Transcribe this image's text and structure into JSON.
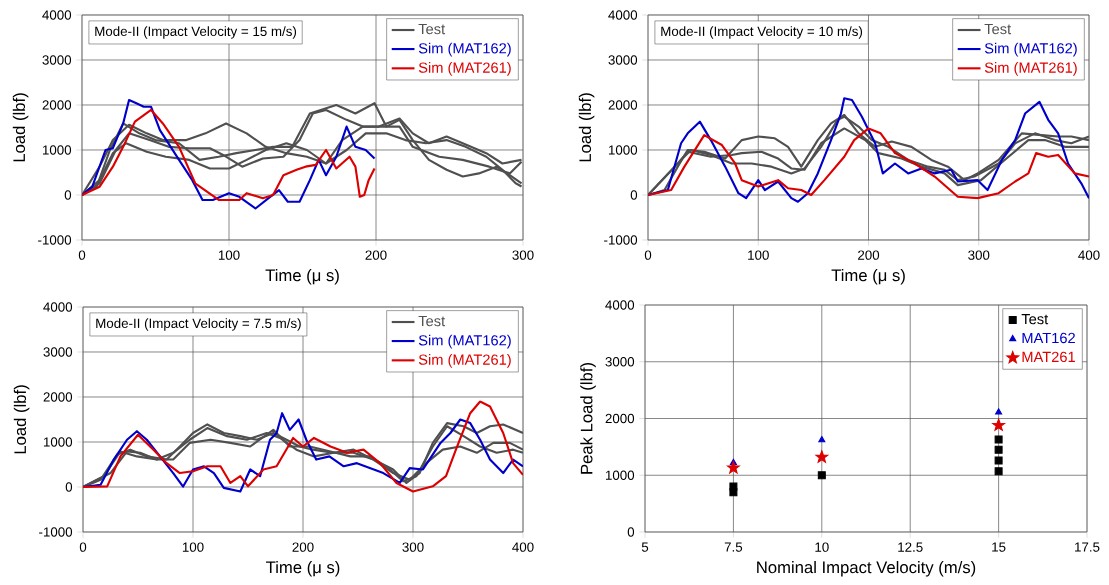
{
  "chart_data": [
    {
      "type": "line",
      "xlabel": "Time (μ s)",
      "ylabel": "Load (lbf)",
      "annotations": [
        "Mode-II (Impact Velocity = 15 m/s)"
      ],
      "xlim": [
        0,
        300
      ],
      "xticks": [
        0,
        100,
        200,
        300
      ],
      "ylim": [
        -1000,
        4000
      ],
      "yticks": [
        -1000,
        0,
        1000,
        2000,
        3000,
        4000
      ],
      "grid": true,
      "legend": "top right",
      "series": [
        {
          "name": "Test",
          "color": "#505050",
          "x": [
            0,
            10,
            19,
            28,
            39,
            50,
            66,
            80,
            93,
            105,
            118,
            130,
            143,
            155,
            173,
            186,
            199,
            207,
            216,
            225,
            236,
            248,
            259,
            270,
            282,
            291,
            299
          ],
          "values": [
            0,
            185,
            1000,
            1590,
            1370,
            1220,
            1150,
            780,
            850,
            930,
            1000,
            1070,
            1070,
            1810,
            2000,
            1810,
            2040,
            1520,
            1670,
            1220,
            780,
            560,
            410,
            480,
            630,
            440,
            260
          ]
        },
        {
          "color": "#505050",
          "x": [
            0,
            12,
            21,
            32,
            44,
            55,
            71,
            84,
            98,
            112,
            125,
            139,
            153,
            166,
            177,
            191,
            202,
            216,
            225,
            236,
            248,
            259,
            275,
            286,
            299
          ],
          "values": [
            0,
            630,
            1220,
            1560,
            1370,
            1220,
            1220,
            1370,
            1590,
            1370,
            1070,
            930,
            850,
            700,
            1220,
            1520,
            1520,
            1700,
            1370,
            1150,
            1300,
            1150,
            930,
            700,
            780
          ]
        },
        {
          "color": "#505050",
          "x": [
            0,
            12,
            21,
            30,
            44,
            57,
            73,
            87,
            100,
            112,
            125,
            139,
            153,
            166,
            180,
            193,
            207,
            220,
            234,
            248,
            261,
            275,
            286,
            295,
            299
          ],
          "values": [
            0,
            330,
            930,
            1150,
            960,
            850,
            780,
            590,
            590,
            780,
            1000,
            1150,
            1000,
            700,
            1000,
            1370,
            1370,
            1220,
            1150,
            1220,
            1070,
            850,
            560,
            260,
            190
          ]
        },
        {
          "color": "#505050",
          "x": [
            0,
            12,
            23,
            32,
            46,
            59,
            73,
            87,
            96,
            109,
            123,
            137,
            148,
            157,
            166,
            180,
            191,
            202,
            216,
            225,
            243,
            259,
            277,
            291,
            299
          ],
          "values": [
            0,
            260,
            1000,
            1370,
            1220,
            1070,
            1040,
            1040,
            890,
            630,
            810,
            850,
            1220,
            1810,
            1890,
            1670,
            1520,
            1520,
            1520,
            1070,
            850,
            780,
            630,
            480,
            740
          ]
        },
        {
          "name": "Sim (MAT162)",
          "color": "#0000cc",
          "x": [
            0,
            7,
            16,
            21,
            28,
            32,
            37,
            42,
            47,
            53,
            66,
            75,
            82,
            89,
            100,
            107,
            118,
            128,
            134,
            140,
            148,
            155,
            161,
            166,
            173,
            180,
            186,
            193,
            199
          ],
          "values": [
            0,
            185,
            1000,
            1040,
            1590,
            2110,
            2040,
            1960,
            1960,
            1440,
            780,
            330,
            -110,
            -110,
            40,
            -40,
            -300,
            -40,
            110,
            -150,
            -150,
            330,
            780,
            440,
            850,
            1520,
            1070,
            1000,
            810
          ]
        },
        {
          "name": "Sim (MAT261)",
          "color": "#dd0000",
          "x": [
            0,
            12,
            21,
            28,
            36,
            47,
            55,
            66,
            77,
            93,
            107,
            112,
            123,
            130,
            137,
            146,
            152,
            159,
            166,
            173,
            182,
            186,
            189,
            192,
            195,
            199
          ],
          "values": [
            0,
            185,
            630,
            1070,
            1630,
            1890,
            1590,
            1070,
            260,
            -110,
            -110,
            40,
            -70,
            0,
            440,
            560,
            630,
            670,
            1000,
            590,
            850,
            630,
            -40,
            0,
            330,
            590
          ]
        }
      ]
    },
    {
      "type": "line",
      "xlabel": "Time (μ s)",
      "ylabel": "Load (lbf)",
      "annotations": [
        "Mode-II (Impact Velocity = 10 m/s)"
      ],
      "xlim": [
        0,
        400
      ],
      "xticks": [
        0,
        100,
        200,
        300,
        400
      ],
      "ylim": [
        -1000,
        4000
      ],
      "yticks": [
        -1000,
        0,
        1000,
        2000,
        3000,
        4000
      ],
      "grid": true,
      "legend": "top right",
      "series": [
        {
          "name": "Test",
          "color": "#505050",
          "x": [
            0,
            15,
            27,
            36,
            51,
            70,
            85,
            100,
            115,
            127,
            139,
            154,
            166,
            178,
            191,
            206,
            221,
            239,
            257,
            272,
            287,
            299,
            318,
            339,
            357,
            372,
            384,
            400
          ],
          "values": [
            0,
            110,
            630,
            1000,
            960,
            810,
            1220,
            1300,
            1260,
            1070,
            630,
            1220,
            1590,
            1780,
            1370,
            1070,
            1190,
            1070,
            780,
            630,
            330,
            480,
            780,
            1370,
            1330,
            1300,
            1300,
            1220
          ]
        },
        {
          "color": "#505050",
          "x": [
            0,
            27,
            36,
            57,
            76,
            85,
            103,
            118,
            130,
            142,
            157,
            178,
            197,
            209,
            230,
            248,
            269,
            281,
            302,
            327,
            345,
            360,
            378,
            400
          ],
          "values": [
            0,
            700,
            960,
            850,
            890,
            930,
            960,
            810,
            590,
            560,
            1150,
            1480,
            1220,
            930,
            810,
            630,
            480,
            220,
            330,
            850,
            1220,
            1220,
            1070,
            1070
          ]
        },
        {
          "color": "#505050",
          "x": [
            0,
            30,
            39,
            57,
            76,
            94,
            112,
            130,
            142,
            157,
            172,
            178,
            191,
            203,
            218,
            236,
            254,
            269,
            281,
            296,
            318,
            333,
            351,
            369,
            384,
            400
          ],
          "values": [
            0,
            780,
            1000,
            890,
            700,
            700,
            630,
            480,
            590,
            1070,
            1670,
            1740,
            1520,
            1220,
            1070,
            780,
            630,
            560,
            330,
            410,
            700,
            1150,
            1370,
            1220,
            1150,
            1300
          ]
        },
        {
          "name": "Sim (MAT162)",
          "color": "#0000cc",
          "x": [
            0,
            18,
            30,
            36,
            47,
            57,
            70,
            82,
            89,
            100,
            106,
            118,
            130,
            136,
            145,
            154,
            166,
            175,
            178,
            185,
            194,
            206,
            213,
            224,
            236,
            248,
            260,
            275,
            281,
            299,
            308,
            321,
            333,
            342,
            355,
            363,
            372,
            381,
            393,
            400
          ],
          "values": [
            0,
            110,
            1150,
            1370,
            1630,
            1220,
            630,
            40,
            -70,
            330,
            110,
            300,
            -70,
            -150,
            40,
            480,
            1220,
            1810,
            2150,
            2110,
            1740,
            1150,
            480,
            700,
            480,
            590,
            480,
            560,
            300,
            330,
            110,
            780,
            1220,
            1810,
            2070,
            1670,
            1370,
            700,
            260,
            -70
          ]
        },
        {
          "name": "Sim (MAT261)",
          "color": "#dd0000",
          "x": [
            0,
            21,
            33,
            51,
            67,
            79,
            85,
            100,
            118,
            127,
            139,
            148,
            160,
            178,
            187,
            200,
            211,
            224,
            242,
            260,
            281,
            299,
            318,
            333,
            345,
            352,
            363,
            372,
            387,
            400
          ],
          "values": [
            0,
            110,
            630,
            1330,
            1110,
            700,
            330,
            190,
            330,
            150,
            110,
            0,
            330,
            850,
            1220,
            1480,
            1370,
            930,
            700,
            410,
            -40,
            -70,
            40,
            300,
            480,
            930,
            850,
            890,
            480,
            410
          ]
        }
      ]
    },
    {
      "type": "line",
      "xlabel": "Time (μ s)",
      "ylabel": "Load (lbf)",
      "annotations": [
        "Mode-II (Impact Velocity = 7.5 m/s)"
      ],
      "xlim": [
        0,
        400
      ],
      "xticks": [
        0,
        100,
        200,
        300,
        400
      ],
      "ylim": [
        -1000,
        4000
      ],
      "yticks": [
        -1000,
        0,
        1000,
        2000,
        3000,
        4000
      ],
      "grid": true,
      "legend": "top right",
      "series": [
        {
          "name": "Test",
          "color": "#505050",
          "x": [
            0,
            16,
            31,
            43,
            58,
            76,
            88,
            100,
            113,
            128,
            143,
            158,
            173,
            185,
            197,
            209,
            227,
            246,
            264,
            282,
            294,
            306,
            318,
            331,
            346,
            358,
            370,
            382,
            400
          ],
          "values": [
            0,
            160,
            720,
            830,
            680,
            610,
            900,
            1200,
            1390,
            1200,
            1130,
            1050,
            1200,
            1050,
            900,
            830,
            760,
            760,
            610,
            390,
            90,
            310,
            980,
            1420,
            1350,
            1200,
            1350,
            1390,
            1200
          ]
        },
        {
          "color": "#505050",
          "x": [
            0,
            19,
            34,
            49,
            67,
            82,
            97,
            113,
            131,
            149,
            167,
            179,
            194,
            210,
            228,
            246,
            264,
            282,
            297,
            312,
            327,
            343,
            358,
            373,
            388,
            400
          ],
          "values": [
            0,
            240,
            790,
            680,
            610,
            760,
            1050,
            1310,
            1130,
            1050,
            1200,
            1090,
            830,
            680,
            760,
            830,
            610,
            310,
            160,
            530,
            830,
            900,
            760,
            980,
            980,
            830
          ]
        },
        {
          "color": "#505050",
          "x": [
            0,
            25,
            40,
            52,
            67,
            82,
            97,
            116,
            134,
            152,
            173,
            188,
            206,
            225,
            243,
            261,
            279,
            291,
            303,
            318,
            331,
            346,
            361,
            376,
            391,
            400
          ],
          "values": [
            0,
            310,
            790,
            760,
            610,
            610,
            980,
            1050,
            980,
            900,
            1270,
            900,
            900,
            790,
            680,
            680,
            390,
            130,
            240,
            900,
            1350,
            1130,
            900,
            760,
            830,
            760
          ]
        },
        {
          "name": "Sim (MAT162)",
          "color": "#0000cc",
          "x": [
            0,
            16,
            28,
            40,
            49,
            58,
            70,
            82,
            91,
            100,
            110,
            119,
            128,
            143,
            152,
            161,
            170,
            176,
            181,
            188,
            196,
            203,
            212,
            224,
            237,
            249,
            261,
            273,
            288,
            297,
            309,
            325,
            334,
            343,
            352,
            361,
            370,
            382,
            391,
            400
          ],
          "values": [
            0,
            50,
            610,
            1050,
            1240,
            1050,
            680,
            310,
            10,
            390,
            460,
            310,
            -20,
            -100,
            390,
            240,
            1050,
            1200,
            1640,
            1270,
            1500,
            1050,
            610,
            680,
            460,
            530,
            420,
            310,
            90,
            420,
            390,
            980,
            1200,
            1500,
            1420,
            1050,
            610,
            310,
            610,
            460
          ]
        },
        {
          "name": "Sim (MAT261)",
          "color": "#dd0000",
          "x": [
            0,
            22,
            34,
            50,
            64,
            76,
            88,
            100,
            113,
            125,
            134,
            143,
            150,
            164,
            176,
            191,
            200,
            210,
            225,
            240,
            255,
            270,
            285,
            300,
            318,
            330,
            339,
            352,
            361,
            370,
            382,
            391,
            400
          ],
          "values": [
            0,
            15,
            680,
            1160,
            830,
            530,
            310,
            350,
            460,
            460,
            90,
            240,
            15,
            390,
            460,
            1090,
            900,
            1090,
            900,
            760,
            830,
            530,
            90,
            -100,
            15,
            240,
            830,
            1640,
            1900,
            1790,
            1200,
            530,
            270
          ]
        }
      ]
    },
    {
      "type": "scatter",
      "xlabel": "Nominal Impact Velocity (m/s)",
      "ylabel": "Peak Load (lbf)",
      "xlim": [
        5,
        17.5
      ],
      "xticks": [
        5,
        7.5,
        10,
        12.5,
        15,
        17.5
      ],
      "ylim": [
        0,
        4000
      ],
      "yticks": [
        0,
        1000,
        2000,
        3000,
        4000
      ],
      "grid": true,
      "legend": "top right",
      "series": [
        {
          "name": "Test",
          "color": "#000000",
          "marker": "square",
          "x": [
            7.5,
            7.5,
            10,
            15,
            15,
            15,
            15
          ],
          "values": [
            700,
            800,
            1000,
            1070,
            1260,
            1450,
            1630
          ]
        },
        {
          "name": "MAT162",
          "color": "#0000cc",
          "marker": "triangle",
          "x": [
            7.5,
            10,
            15
          ],
          "values": [
            1220,
            1620,
            2110
          ]
        },
        {
          "name": "MAT261",
          "color": "#dd0000",
          "marker": "star",
          "x": [
            7.5,
            10,
            15
          ],
          "values": [
            1130,
            1320,
            1880
          ]
        }
      ]
    }
  ]
}
